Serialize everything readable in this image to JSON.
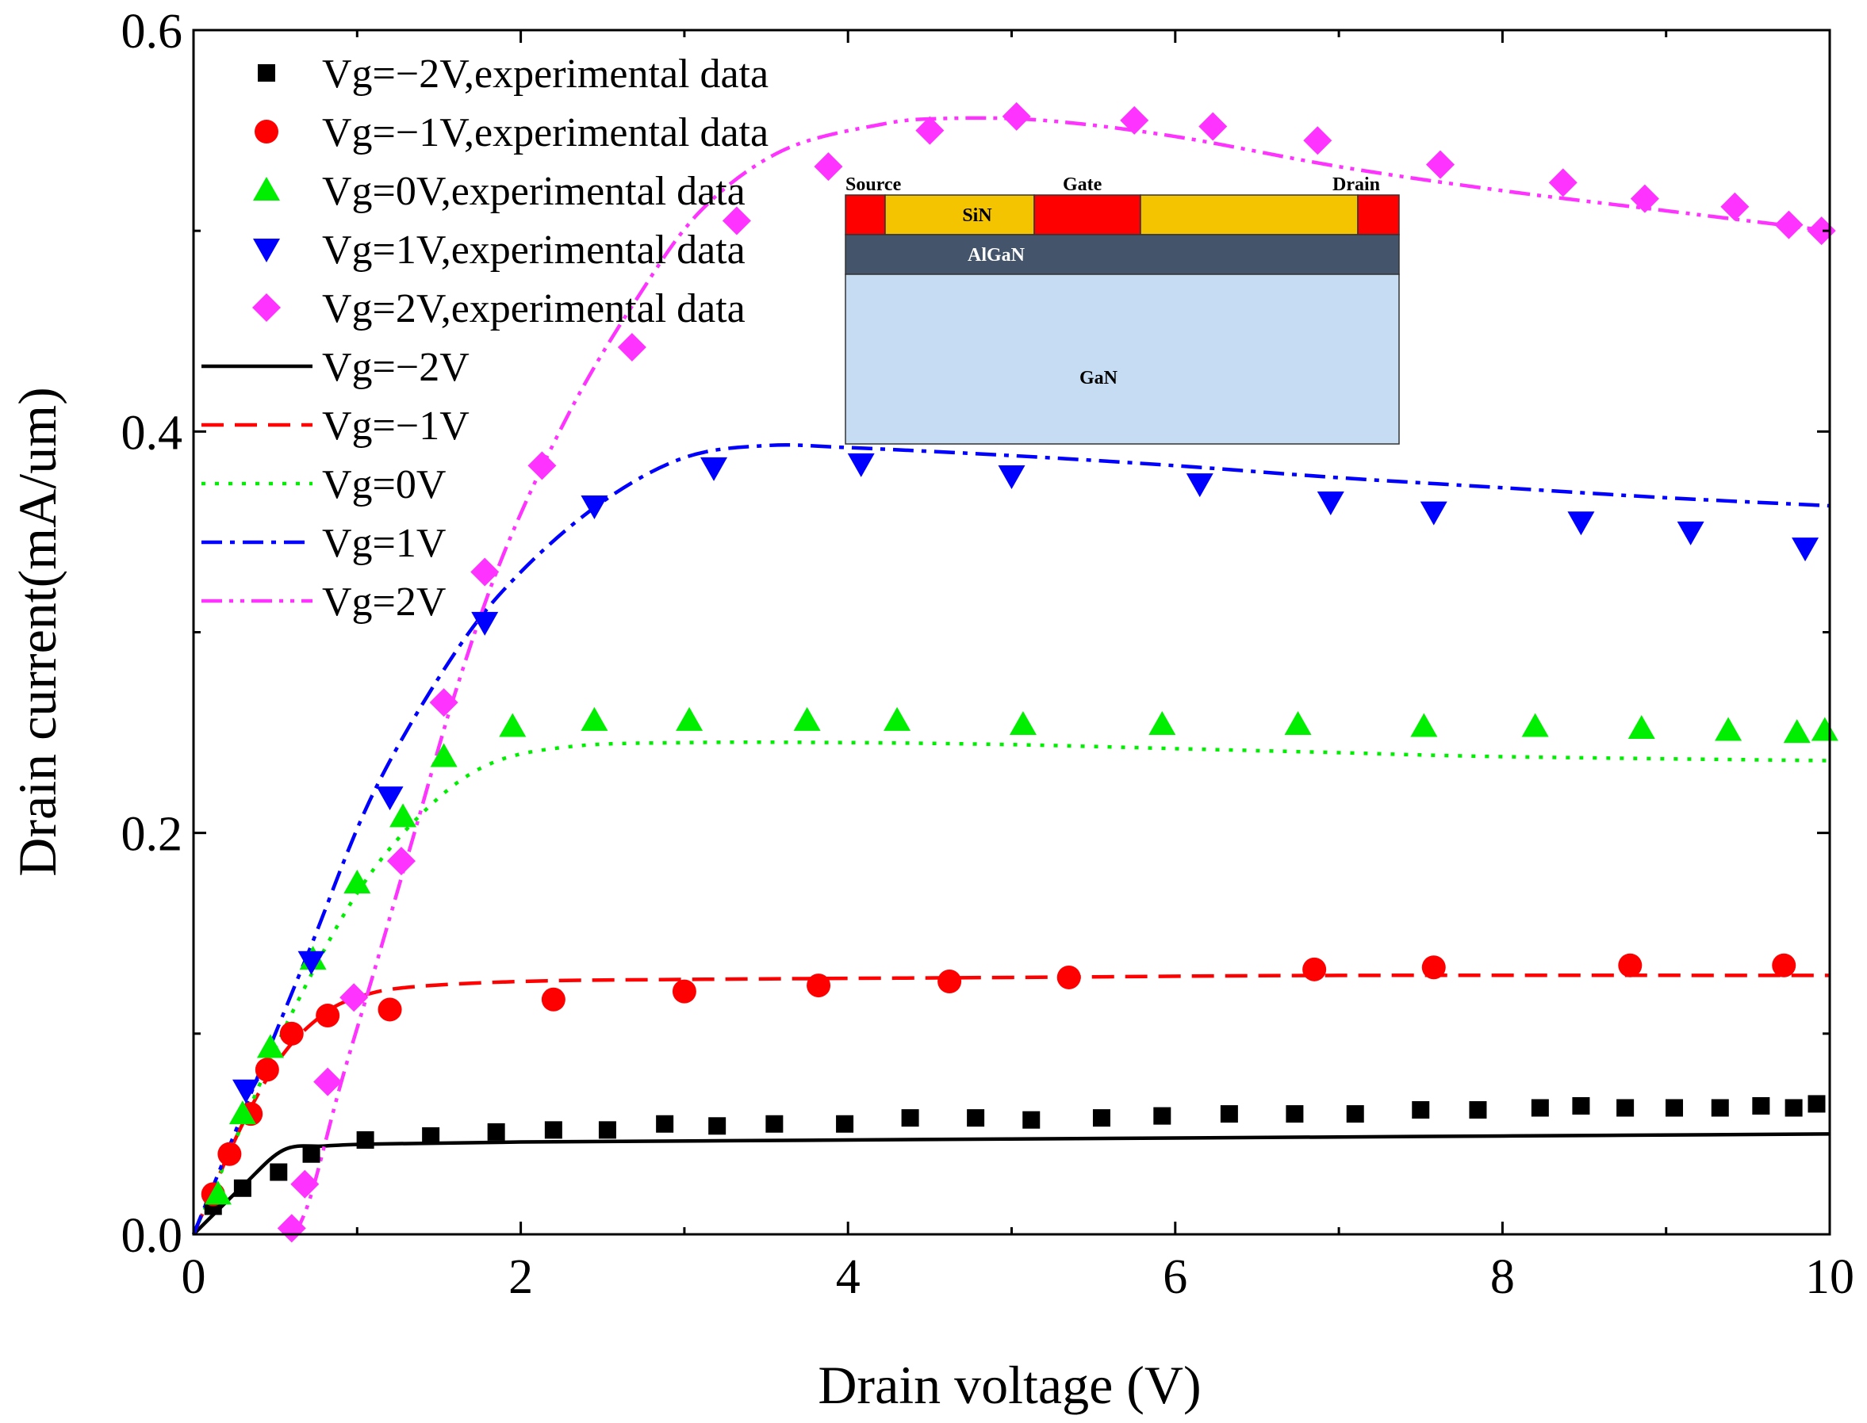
{
  "chart_data": {
    "type": "scatter",
    "xlabel": "Drain voltage (V)",
    "ylabel": "Drain current(mA/um)",
    "xlim": [
      0,
      10
    ],
    "ylim": [
      0,
      0.6
    ],
    "xticks": [
      0,
      2,
      4,
      6,
      8,
      10
    ],
    "xtick_labels": [
      "0",
      "2",
      "4",
      "6",
      "8",
      "10"
    ],
    "yticks": [
      0,
      0.2,
      0.4,
      0.6
    ],
    "ytick_labels": [
      "0.0",
      "0.2",
      "0.4",
      "0.6"
    ],
    "legend_position": "top-left",
    "colors": {
      "vgm2": "#000000",
      "vgm1": "#ff0000",
      "vg0": "#00ee00",
      "vg1": "#0000ff",
      "vg2": "#ff33ff"
    },
    "experimental": [
      {
        "name": "Vg=−2V,experimental data",
        "marker": "square",
        "color": "#000000",
        "points": [
          [
            0.12,
            0.014
          ],
          [
            0.3,
            0.023
          ],
          [
            0.52,
            0.031
          ],
          [
            0.72,
            0.04
          ],
          [
            1.05,
            0.047
          ],
          [
            1.45,
            0.049
          ],
          [
            1.85,
            0.051
          ],
          [
            2.2,
            0.052
          ],
          [
            2.53,
            0.052
          ],
          [
            2.88,
            0.055
          ],
          [
            3.2,
            0.054
          ],
          [
            3.55,
            0.055
          ],
          [
            3.98,
            0.055
          ],
          [
            4.38,
            0.058
          ],
          [
            4.78,
            0.058
          ],
          [
            5.12,
            0.057
          ],
          [
            5.55,
            0.058
          ],
          [
            5.92,
            0.059
          ],
          [
            6.33,
            0.06
          ],
          [
            6.73,
            0.06
          ],
          [
            7.1,
            0.06
          ],
          [
            7.5,
            0.062
          ],
          [
            7.85,
            0.062
          ],
          [
            8.23,
            0.063
          ],
          [
            8.48,
            0.064
          ],
          [
            8.75,
            0.063
          ],
          [
            9.05,
            0.063
          ],
          [
            9.33,
            0.063
          ],
          [
            9.58,
            0.064
          ],
          [
            9.78,
            0.063
          ],
          [
            9.92,
            0.065
          ]
        ]
      },
      {
        "name": "Vg=−1V,experimental data",
        "marker": "circle",
        "color": "#ff0000",
        "points": [
          [
            0.12,
            0.02
          ],
          [
            0.22,
            0.04
          ],
          [
            0.35,
            0.06
          ],
          [
            0.45,
            0.082
          ],
          [
            0.6,
            0.1
          ],
          [
            0.82,
            0.109
          ],
          [
            1.2,
            0.112
          ],
          [
            2.2,
            0.117
          ],
          [
            3.0,
            0.121
          ],
          [
            3.82,
            0.124
          ],
          [
            4.62,
            0.126
          ],
          [
            5.35,
            0.128
          ],
          [
            6.85,
            0.132
          ],
          [
            7.58,
            0.133
          ],
          [
            8.78,
            0.134
          ],
          [
            9.72,
            0.134
          ]
        ]
      },
      {
        "name": "Vg=0V,experimental data",
        "marker": "triangle-up",
        "color": "#00ee00",
        "points": [
          [
            0.15,
            0.02
          ],
          [
            0.3,
            0.06
          ],
          [
            0.47,
            0.093
          ],
          [
            0.73,
            0.137
          ],
          [
            1.0,
            0.175
          ],
          [
            1.28,
            0.208
          ],
          [
            1.53,
            0.238
          ],
          [
            1.95,
            0.253
          ],
          [
            2.45,
            0.256
          ],
          [
            3.03,
            0.256
          ],
          [
            3.75,
            0.256
          ],
          [
            4.3,
            0.256
          ],
          [
            5.07,
            0.254
          ],
          [
            5.92,
            0.254
          ],
          [
            6.75,
            0.254
          ],
          [
            7.52,
            0.253
          ],
          [
            8.2,
            0.253
          ],
          [
            8.85,
            0.252
          ],
          [
            9.38,
            0.251
          ],
          [
            9.8,
            0.25
          ],
          [
            9.97,
            0.251
          ]
        ]
      },
      {
        "name": "Vg=1V,experimental data",
        "marker": "triangle-down",
        "color": "#0000ff",
        "points": [
          [
            0.32,
            0.072
          ],
          [
            0.72,
            0.136
          ],
          [
            1.2,
            0.218
          ],
          [
            1.78,
            0.305
          ],
          [
            2.45,
            0.363
          ],
          [
            3.18,
            0.382
          ],
          [
            4.08,
            0.384
          ],
          [
            5.0,
            0.378
          ],
          [
            6.15,
            0.374
          ],
          [
            6.95,
            0.365
          ],
          [
            7.58,
            0.36
          ],
          [
            8.48,
            0.355
          ],
          [
            9.15,
            0.35
          ],
          [
            9.85,
            0.342
          ]
        ]
      },
      {
        "name": "Vg=2V,experimental data",
        "marker": "diamond",
        "color": "#ff33ff",
        "points": [
          [
            0.6,
            0.003
          ],
          [
            0.68,
            0.025
          ],
          [
            0.82,
            0.076
          ],
          [
            0.98,
            0.118
          ],
          [
            1.27,
            0.186
          ],
          [
            1.53,
            0.265
          ],
          [
            1.78,
            0.33
          ],
          [
            2.13,
            0.383
          ],
          [
            2.68,
            0.442
          ],
          [
            3.32,
            0.505
          ],
          [
            3.88,
            0.532
          ],
          [
            4.5,
            0.55
          ],
          [
            5.03,
            0.557
          ],
          [
            5.75,
            0.555
          ],
          [
            6.23,
            0.552
          ],
          [
            6.87,
            0.545
          ],
          [
            7.62,
            0.533
          ],
          [
            8.37,
            0.524
          ],
          [
            8.87,
            0.516
          ],
          [
            9.42,
            0.512
          ],
          [
            9.75,
            0.503
          ],
          [
            9.95,
            0.5
          ]
        ]
      }
    ],
    "simulated": [
      {
        "name": "Vg=−2V",
        "style": "solid",
        "color": "#000000",
        "points": [
          [
            0,
            0
          ],
          [
            0.3,
            0.024
          ],
          [
            0.55,
            0.042
          ],
          [
            0.8,
            0.044
          ],
          [
            1.1,
            0.045
          ],
          [
            2,
            0.046
          ],
          [
            4,
            0.047
          ],
          [
            6,
            0.048
          ],
          [
            8,
            0.049
          ],
          [
            10,
            0.05
          ]
        ]
      },
      {
        "name": "Vg=−1V",
        "style": "dashed",
        "color": "#ff0000",
        "points": [
          [
            0,
            0
          ],
          [
            0.3,
            0.055
          ],
          [
            0.55,
            0.09
          ],
          [
            0.8,
            0.11
          ],
          [
            1,
            0.118
          ],
          [
            1.3,
            0.123
          ],
          [
            2,
            0.126
          ],
          [
            3,
            0.127
          ],
          [
            5,
            0.128
          ],
          [
            7,
            0.129
          ],
          [
            10,
            0.129
          ]
        ]
      },
      {
        "name": "Vg=0V",
        "style": "dotted",
        "color": "#00ee00",
        "points": [
          [
            0,
            0
          ],
          [
            0.3,
            0.055
          ],
          [
            0.6,
            0.11
          ],
          [
            1,
            0.17
          ],
          [
            1.4,
            0.21
          ],
          [
            1.8,
            0.234
          ],
          [
            2.3,
            0.243
          ],
          [
            3,
            0.245
          ],
          [
            4,
            0.245
          ],
          [
            5,
            0.244
          ],
          [
            6,
            0.242
          ],
          [
            7,
            0.24
          ],
          [
            8,
            0.238
          ],
          [
            10,
            0.236
          ]
        ]
      },
      {
        "name": "Vg=1V",
        "style": "dashdot",
        "color": "#0000ff",
        "points": [
          [
            0,
            0
          ],
          [
            0.3,
            0.06
          ],
          [
            0.7,
            0.14
          ],
          [
            1.1,
            0.22
          ],
          [
            1.6,
            0.29
          ],
          [
            2.0,
            0.33
          ],
          [
            2.5,
            0.365
          ],
          [
            3.0,
            0.387
          ],
          [
            3.5,
            0.393
          ],
          [
            4,
            0.392
          ],
          [
            5,
            0.388
          ],
          [
            6,
            0.383
          ],
          [
            7,
            0.377
          ],
          [
            8,
            0.372
          ],
          [
            9,
            0.367
          ],
          [
            10,
            0.363
          ]
        ]
      },
      {
        "name": "Vg=2V",
        "style": "dashdotdot",
        "color": "#ff33ff",
        "points": [
          [
            0.62,
            0
          ],
          [
            0.72,
            0.02
          ],
          [
            0.9,
            0.075
          ],
          [
            1.1,
            0.13
          ],
          [
            1.35,
            0.2
          ],
          [
            1.6,
            0.27
          ],
          [
            1.9,
            0.34
          ],
          [
            2.3,
            0.41
          ],
          [
            2.7,
            0.465
          ],
          [
            3.1,
            0.51
          ],
          [
            3.6,
            0.54
          ],
          [
            4.2,
            0.553
          ],
          [
            4.6,
            0.556
          ],
          [
            5.2,
            0.555
          ],
          [
            6,
            0.547
          ],
          [
            7,
            0.532
          ],
          [
            8,
            0.52
          ],
          [
            9,
            0.51
          ],
          [
            10,
            0.5
          ]
        ]
      }
    ],
    "inset": {
      "labels": {
        "source": "Source",
        "gate": "Gate",
        "drain": "Drain",
        "sin": "SiN",
        "algan": "AlGaN",
        "gan": "GaN"
      }
    }
  }
}
